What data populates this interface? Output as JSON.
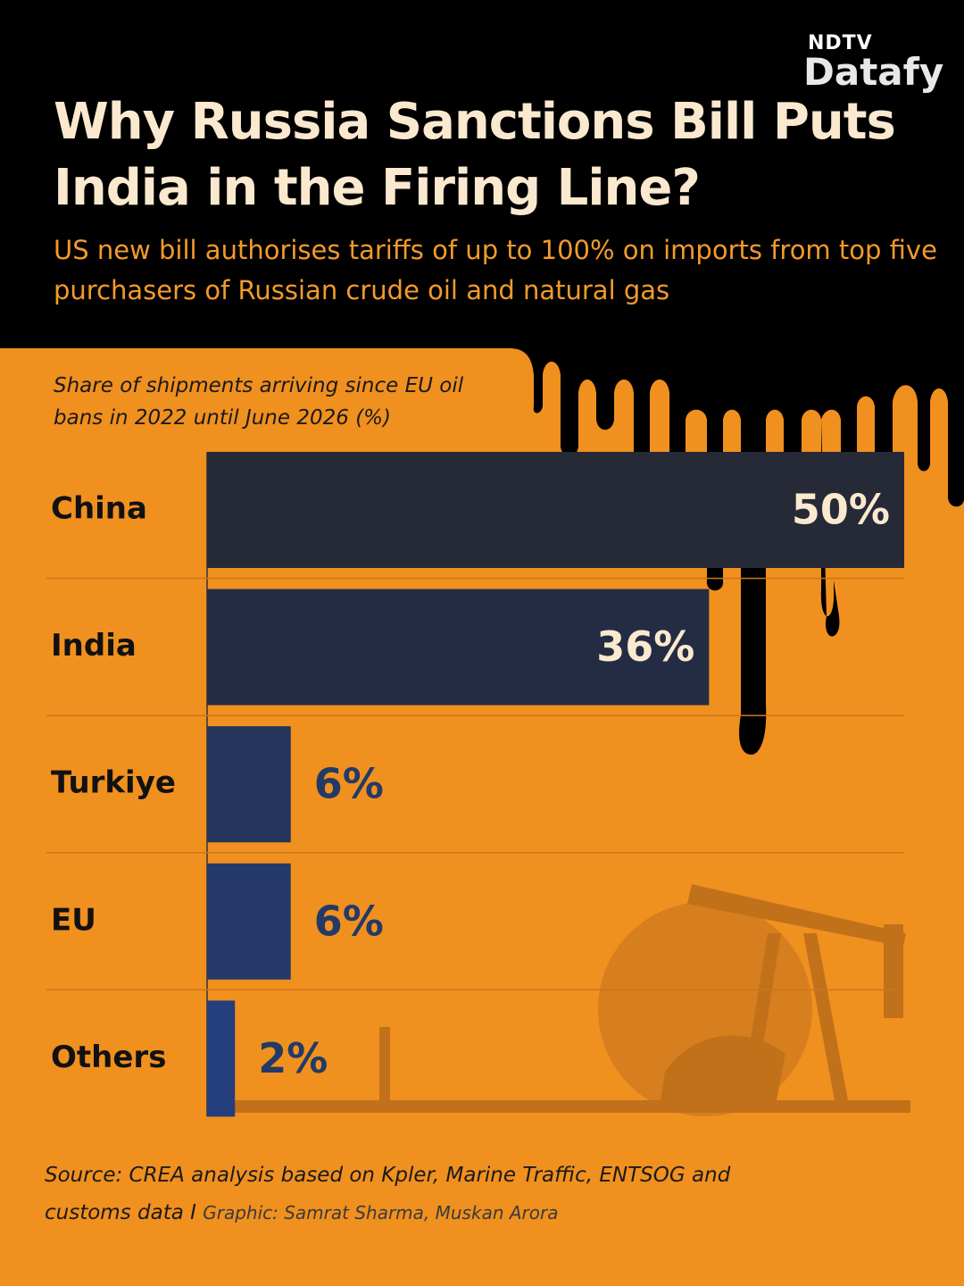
{
  "brand": {
    "top": "NDTV",
    "name": "Datafy"
  },
  "chart_data": {
    "type": "bar",
    "title": "Why Russia Sanctions Bill Puts India in the Firing Line?",
    "subtitle": "US new bill authorises tariffs of up to 100% on imports from top five purchasers of Russian crude oil and natural gas",
    "note": "Share of shipments arriving since EU oil bans in 2022 until June 2026 (%)",
    "orientation": "horizontal",
    "categories": [
      "China",
      "India",
      "Turkiye",
      "EU",
      "Others"
    ],
    "values": [
      50,
      36,
      6,
      6,
      2
    ],
    "value_labels": [
      "50%",
      "36%",
      "6%",
      "6%",
      "2%"
    ],
    "colors": [
      "#262a37",
      "#242c44",
      "#25345a",
      "#253a6b",
      "#243e7c"
    ],
    "source": "Source: CREA analysis based on Kpler, Marine Traffic, ENTSOG and customs data I",
    "credit": "Graphic: Samrat Sharma, Muskan Arora"
  }
}
